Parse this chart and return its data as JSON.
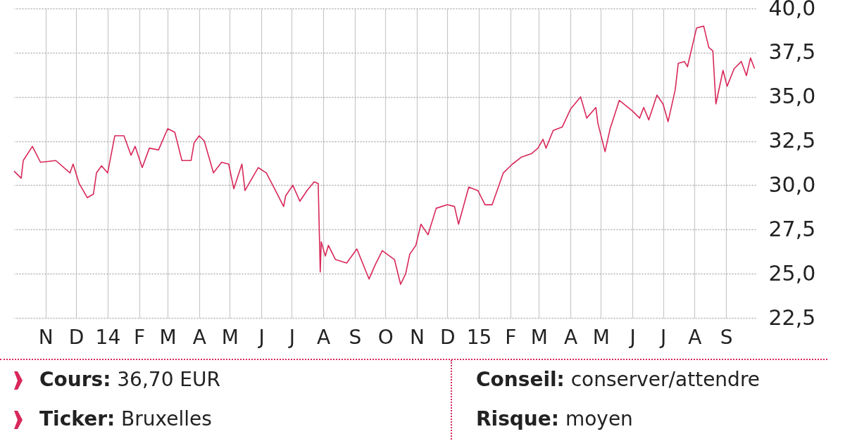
{
  "chart_data": {
    "type": "line",
    "x": [
      "2013-10-01",
      "2013-10-08",
      "2013-10-10",
      "2013-10-19",
      "2013-10-27",
      "2013-11-11",
      "2013-11-25",
      "2013-11-28",
      "2013-12-04",
      "2013-12-12",
      "2013-12-18",
      "2013-12-21",
      "2013-12-26",
      "2014-01-01",
      "2014-01-08",
      "2014-01-17",
      "2014-01-24",
      "2014-01-28",
      "2014-02-04",
      "2014-02-11",
      "2014-02-20",
      "2014-03-01",
      "2014-03-08",
      "2014-03-15",
      "2014-03-24",
      "2014-03-27",
      "2014-04-01",
      "2014-04-06",
      "2014-04-15",
      "2014-04-23",
      "2014-04-30",
      "2014-05-05",
      "2014-05-13",
      "2014-05-16",
      "2014-05-29",
      "2014-06-06",
      "2014-06-15",
      "2014-06-23",
      "2014-06-25",
      "2014-07-02",
      "2014-07-09",
      "2014-07-16",
      "2014-07-23",
      "2014-07-27",
      "2014-07-29",
      "2014-07-30",
      "2014-08-03",
      "2014-08-06",
      "2014-08-13",
      "2014-08-24",
      "2014-09-03",
      "2014-09-15",
      "2014-09-21",
      "2014-09-28",
      "2014-10-10",
      "2014-10-16",
      "2014-10-21",
      "2014-10-25",
      "2014-10-31",
      "2014-11-05",
      "2014-11-12",
      "2014-11-20",
      "2014-12-01",
      "2014-12-08",
      "2014-12-12",
      "2014-12-22",
      "2014-12-31",
      "2015-01-07",
      "2015-01-14",
      "2015-01-25",
      "2015-02-03",
      "2015-02-12",
      "2015-02-22",
      "2015-02-28",
      "2015-03-05",
      "2015-03-08",
      "2015-03-15",
      "2015-03-24",
      "2015-04-01",
      "2015-04-11",
      "2015-04-17",
      "2015-04-26",
      "2015-04-28",
      "2015-05-05",
      "2015-05-10",
      "2015-05-19",
      "2015-06-01",
      "2015-06-08",
      "2015-06-12",
      "2015-06-17",
      "2015-06-25",
      "2015-07-01",
      "2015-07-06",
      "2015-07-13",
      "2015-07-16",
      "2015-07-22",
      "2015-07-25",
      "2015-08-03",
      "2015-08-10",
      "2015-08-15",
      "2015-08-19",
      "2015-08-22",
      "2015-08-29",
      "2015-09-02",
      "2015-09-09",
      "2015-09-16",
      "2015-09-21",
      "2015-09-25",
      "2015-09-29"
    ],
    "series": [
      {
        "color": "#d8285a",
        "values": [
          30.8,
          30.4,
          31.4,
          32.2,
          31.3,
          31.4,
          30.7,
          31.2,
          30.1,
          29.3,
          29.5,
          30.7,
          31.1,
          30.7,
          32.8,
          32.8,
          31.7,
          32.2,
          31.0,
          32.1,
          32.0,
          33.2,
          33.0,
          31.4,
          31.4,
          32.4,
          32.8,
          32.5,
          30.7,
          31.3,
          31.2,
          29.8,
          31.2,
          29.7,
          31.0,
          30.7,
          29.7,
          28.8,
          29.4,
          30.0,
          29.1,
          29.7,
          30.2,
          30.1,
          25.1,
          26.8,
          26.0,
          26.6,
          25.8,
          25.6,
          26.4,
          24.7,
          25.5,
          26.3,
          25.8,
          24.4,
          25.0,
          26.1,
          26.6,
          27.8,
          27.2,
          28.7,
          28.9,
          28.8,
          27.8,
          29.9,
          29.7,
          28.9,
          28.9,
          30.7,
          31.2,
          31.6,
          31.8,
          32.1,
          32.6,
          32.1,
          33.1,
          33.3,
          34.3,
          35.0,
          33.8,
          34.4,
          33.5,
          31.9,
          33.2,
          34.8,
          34.2,
          33.8,
          34.4,
          33.7,
          35.1,
          34.6,
          33.6,
          35.4,
          36.9,
          37.0,
          36.7,
          38.9,
          39.0,
          37.8,
          37.6,
          34.6,
          36.5,
          35.6,
          36.6,
          37.0,
          36.2,
          37.2,
          36.6
        ]
      }
    ],
    "xlim": [
      "2013-10-01",
      "2015-09-30"
    ],
    "xticks": [
      {
        "value": "2013-11-01",
        "label": "N"
      },
      {
        "value": "2013-12-01",
        "label": "D"
      },
      {
        "value": "2014-01-01",
        "label": "14"
      },
      {
        "value": "2014-02-01",
        "label": "F"
      },
      {
        "value": "2014-03-01",
        "label": "M"
      },
      {
        "value": "2014-04-01",
        "label": "A"
      },
      {
        "value": "2014-05-01",
        "label": "M"
      },
      {
        "value": "2014-06-01",
        "label": "J"
      },
      {
        "value": "2014-07-01",
        "label": "J"
      },
      {
        "value": "2014-08-01",
        "label": "A"
      },
      {
        "value": "2014-09-01",
        "label": "S"
      },
      {
        "value": "2014-10-01",
        "label": "O"
      },
      {
        "value": "2014-11-01",
        "label": "N"
      },
      {
        "value": "2014-12-01",
        "label": "D"
      },
      {
        "value": "2015-01-01",
        "label": "15"
      },
      {
        "value": "2015-02-01",
        "label": "F"
      },
      {
        "value": "2015-03-01",
        "label": "M"
      },
      {
        "value": "2015-04-01",
        "label": "A"
      },
      {
        "value": "2015-05-01",
        "label": "M"
      },
      {
        "value": "2015-06-01",
        "label": "J"
      },
      {
        "value": "2015-07-01",
        "label": "J"
      },
      {
        "value": "2015-08-01",
        "label": "A"
      },
      {
        "value": "2015-09-01",
        "label": "S"
      }
    ],
    "ylim": [
      22.5,
      40
    ],
    "yticks": [
      {
        "value": 22.5,
        "label": "22,5"
      },
      {
        "value": 25,
        "label": "25,0"
      },
      {
        "value": 27.5,
        "label": "27,5"
      },
      {
        "value": 30,
        "label": "30,0"
      },
      {
        "value": 32.5,
        "label": "32,5"
      },
      {
        "value": 35,
        "label": "35,0"
      },
      {
        "value": 37.5,
        "label": "37,5"
      },
      {
        "value": 40,
        "label": "40,0"
      }
    ],
    "grid": true,
    "annotations": [
      "Cours: 36,70 EUR",
      "Ticker: Bruxelles",
      "Conseil: conserver/attendre",
      "Risque: moyen"
    ]
  }
}
